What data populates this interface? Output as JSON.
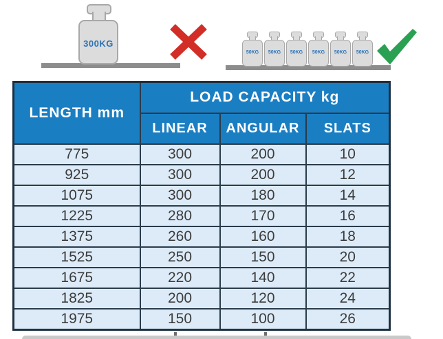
{
  "illustration": {
    "wrong_case": {
      "weight_label": "300KG",
      "icon": "x-mark-icon"
    },
    "right_case": {
      "weight_labels": [
        "50KG",
        "50KG",
        "50KG",
        "50KG",
        "50KG",
        "50KG"
      ],
      "icon": "check-mark-icon"
    }
  },
  "table": {
    "col_header_length": "LENGTH mm",
    "col_header_load": "LOAD CAPACITY kg",
    "sub_headers": [
      "LINEAR",
      "ANGULAR",
      "SLATS"
    ],
    "rows": [
      [
        "775",
        "300",
        "200",
        "10"
      ],
      [
        "925",
        "300",
        "200",
        "12"
      ],
      [
        "1075",
        "300",
        "180",
        "14"
      ],
      [
        "1225",
        "280",
        "170",
        "16"
      ],
      [
        "1375",
        "260",
        "160",
        "18"
      ],
      [
        "1525",
        "250",
        "150",
        "20"
      ],
      [
        "1675",
        "220",
        "140",
        "22"
      ],
      [
        "1825",
        "200",
        "120",
        "24"
      ],
      [
        "1975",
        "150",
        "100",
        "26"
      ]
    ]
  },
  "colors": {
    "header_blue": "#1a7ec3",
    "body_light_blue": "#ddebf8",
    "weight_text_blue": "#2e74b5",
    "cross_red": "#d22d26",
    "check_green": "#2aa052",
    "floor_gray": "#8c8c8c"
  }
}
